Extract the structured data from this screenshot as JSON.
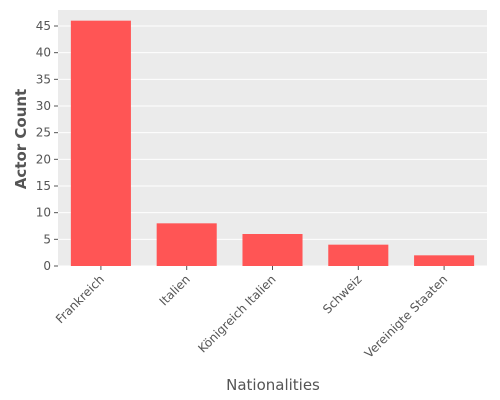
{
  "chart_data": {
    "type": "bar",
    "categories": [
      "Frankreich",
      "Italien",
      "Königreich Italien",
      "Schweiz",
      "Vereinigte Staaten"
    ],
    "values": [
      46,
      8,
      6,
      4,
      2
    ],
    "xlabel": "Nationalities",
    "ylabel": "Actor Count",
    "ylim": [
      0,
      48
    ],
    "yticks": [
      0,
      5,
      10,
      15,
      20,
      25,
      30,
      35,
      40,
      45
    ],
    "grid": true,
    "bar_color": "#ff5555",
    "background_color": "#ebebeb",
    "grid_color": "#ffffff"
  }
}
